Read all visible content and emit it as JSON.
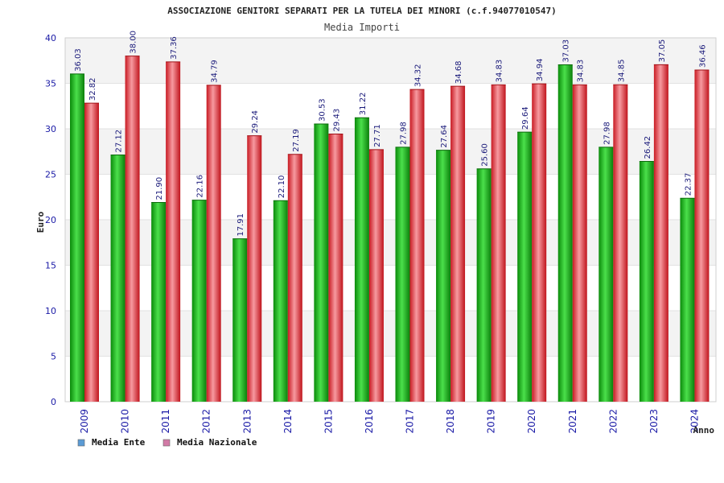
{
  "chart_data": {
    "type": "bar",
    "title": "ASSOCIAZIONE GENITORI SEPARATI PER LA TUTELA DEI MINORI (c.f.94077010547)",
    "subtitle": "Media Importi",
    "xlabel": "Anno",
    "ylabel": "Euro",
    "ylim": [
      0,
      40
    ],
    "yticks": [
      "0",
      "5",
      "10",
      "15",
      "20",
      "25",
      "30",
      "35",
      "40"
    ],
    "grid": true,
    "legend_position": "bottom-left",
    "categories": [
      "2009",
      "2010",
      "2011",
      "2012",
      "2013",
      "2014",
      "2015",
      "2016",
      "2017",
      "2018",
      "2019",
      "2020",
      "2021",
      "2022",
      "2023",
      "2024"
    ],
    "series": [
      {
        "name": "Media Ente",
        "color": "#1fb81f",
        "legend_color": "#5b9bd5",
        "values": [
          36.03,
          27.12,
          21.9,
          22.16,
          17.91,
          22.1,
          30.53,
          31.22,
          27.98,
          27.64,
          25.6,
          29.64,
          37.03,
          27.98,
          26.42,
          22.37
        ],
        "labels": [
          "36.03",
          "27.12",
          "21.90",
          "22.16",
          "17.91",
          "22.10",
          "30.53",
          "31.22",
          "27.98",
          "27.64",
          "25.60",
          "29.64",
          "37.03",
          "27.98",
          "26.42",
          "22.37"
        ]
      },
      {
        "name": "Media Nazionale",
        "color": "#e8323a",
        "legend_color": "#d27aa6",
        "values": [
          32.82,
          38.0,
          37.36,
          34.79,
          29.24,
          27.19,
          29.43,
          27.71,
          34.32,
          34.68,
          34.83,
          34.94,
          34.83,
          34.85,
          37.05,
          36.46
        ],
        "labels": [
          "32.82",
          "38.00",
          "37.36",
          "34.79",
          "29.24",
          "27.19",
          "29.43",
          "27.71",
          "34.32",
          "34.68",
          "34.83",
          "34.94",
          "34.83",
          "34.85",
          "37.05",
          "36.46"
        ]
      }
    ]
  }
}
